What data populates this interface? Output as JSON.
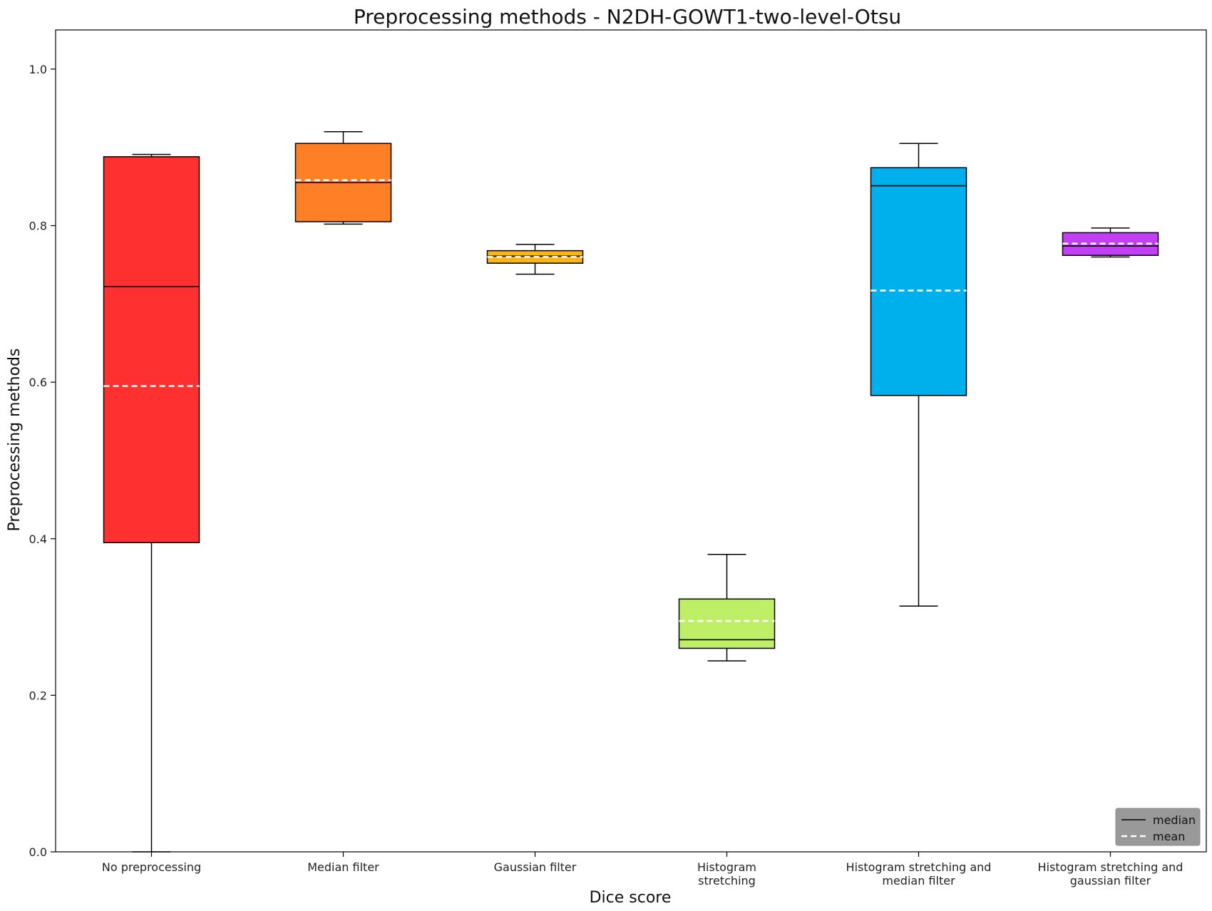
{
  "chart_data": {
    "type": "box",
    "title": "Preprocessing methods - N2DH-GOWT1-two-level-Otsu",
    "xlabel": "Dice score",
    "ylabel": "Preprocessing methods",
    "ylim": [
      0,
      1.05
    ],
    "yticks": [
      0.0,
      0.2,
      0.4,
      0.6,
      0.8,
      1.0
    ],
    "ytick_labels": [
      "0.0",
      "0.2",
      "0.4",
      "0.6",
      "0.8",
      "1.0"
    ],
    "grid": false,
    "legend": {
      "placement": "bottom-right",
      "entries": [
        {
          "label": "median",
          "style": "solid",
          "color": "#000000"
        },
        {
          "label": "mean",
          "style": "dashed",
          "color": "#ffffff"
        }
      ],
      "background": "#999999"
    },
    "categories": [
      {
        "label_lines": [
          "No preprocessing"
        ],
        "color": "#ff3030",
        "whisker_low": 0.0,
        "q1": 0.395,
        "median": 0.722,
        "q3": 0.888,
        "whisker_high": 0.891,
        "mean": 0.595
      },
      {
        "label_lines": [
          "Median filter"
        ],
        "color": "#ff7f27",
        "whisker_low": 0.802,
        "q1": 0.805,
        "median": 0.855,
        "q3": 0.905,
        "whisker_high": 0.92,
        "mean": 0.858
      },
      {
        "label_lines": [
          "Gaussian filter"
        ],
        "color": "#fcb418",
        "whisker_low": 0.738,
        "q1": 0.752,
        "median": 0.761,
        "q3": 0.768,
        "whisker_high": 0.776,
        "mean": 0.76
      },
      {
        "label_lines": [
          "Histogram",
          "stretching"
        ],
        "color": "#bfef66",
        "whisker_low": 0.244,
        "q1": 0.26,
        "median": 0.271,
        "q3": 0.323,
        "whisker_high": 0.38,
        "mean": 0.295
      },
      {
        "label_lines": [
          "Histogram stretching and",
          "median filter"
        ],
        "color": "#00b0ec",
        "whisker_low": 0.314,
        "q1": 0.583,
        "median": 0.851,
        "q3": 0.874,
        "whisker_high": 0.905,
        "mean": 0.717
      },
      {
        "label_lines": [
          "Histogram stretching and",
          "gaussian filter"
        ],
        "color": "#c33ef5",
        "whisker_low": 0.76,
        "q1": 0.762,
        "median": 0.774,
        "q3": 0.791,
        "whisker_high": 0.797,
        "mean": 0.777
      }
    ]
  }
}
